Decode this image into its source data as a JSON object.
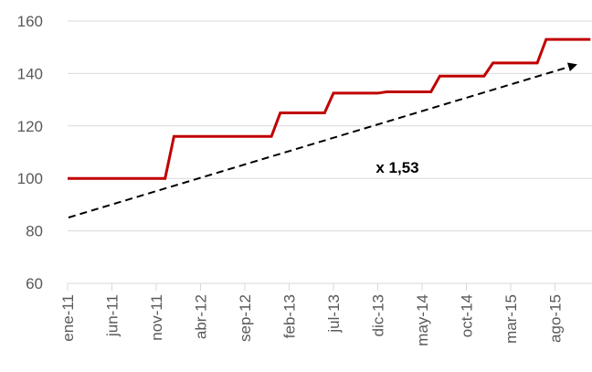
{
  "chart_data": {
    "type": "line",
    "categories": [
      "ene-11",
      null,
      null,
      null,
      null,
      "jun-11",
      null,
      null,
      null,
      null,
      "nov-11",
      null,
      null,
      null,
      null,
      "abr-12",
      null,
      null,
      null,
      null,
      "sep-12",
      null,
      null,
      null,
      null,
      "feb-13",
      null,
      null,
      null,
      null,
      "jul-13",
      null,
      null,
      null,
      null,
      "dic-13",
      null,
      null,
      null,
      null,
      "may-14",
      null,
      null,
      null,
      null,
      "oct-14",
      null,
      null,
      null,
      null,
      "mar-15",
      null,
      null,
      null,
      null,
      "ago-15",
      null,
      null,
      null,
      null
    ],
    "values": [
      100,
      100,
      100,
      100,
      100,
      100,
      100,
      100,
      100,
      100,
      100,
      100,
      116,
      116,
      116,
      116,
      116,
      116,
      116,
      116,
      116,
      116,
      116,
      116,
      125,
      125,
      125,
      125,
      125,
      125,
      132.5,
      132.5,
      132.5,
      132.5,
      132.5,
      132.5,
      133,
      133,
      133,
      133,
      133,
      133,
      139,
      139,
      139,
      139,
      139,
      139,
      144,
      144,
      144,
      144,
      144,
      144,
      153,
      153,
      153,
      153,
      153,
      153
    ],
    "color": "#c00000",
    "ylim": [
      60,
      160
    ],
    "yticks": [
      60,
      80,
      100,
      120,
      140,
      160
    ],
    "grid": true,
    "annotation": "x 1,53"
  }
}
